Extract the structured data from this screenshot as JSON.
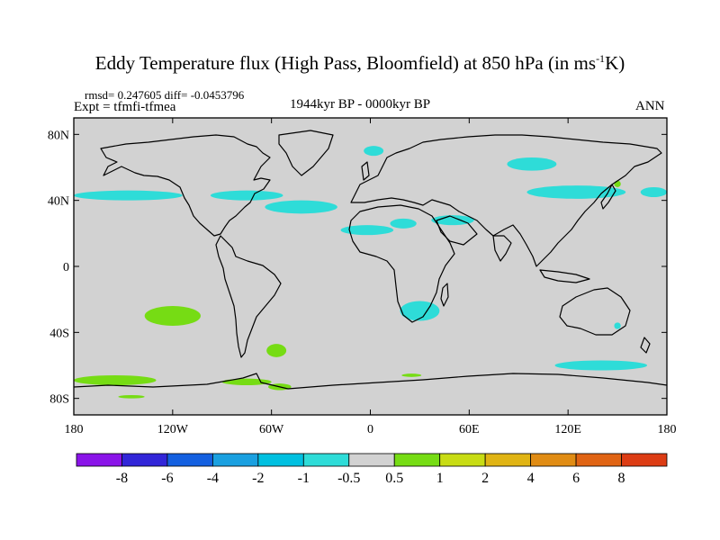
{
  "header": {
    "title_main": "Eddy Temperature flux (High Pass, Bloomfield) at 850 hPa (in ms",
    "title_sup": "-1",
    "title_end": "K)",
    "stats": "rmsd= 0.247605 diff= -0.0453796",
    "expt": "Expt = tfmfi-tfmea",
    "period": "1944kyr BP - 0000kyr BP",
    "season": "ANN"
  },
  "axes": {
    "lon_ticks": [
      {
        "lon": -180,
        "label": "180"
      },
      {
        "lon": -120,
        "label": "120W"
      },
      {
        "lon": -60,
        "label": "60W"
      },
      {
        "lon": 0,
        "label": "0"
      },
      {
        "lon": 60,
        "label": "60E"
      },
      {
        "lon": 120,
        "label": "120E"
      },
      {
        "lon": 180,
        "label": "180"
      }
    ],
    "lat_ticks": [
      {
        "lat": 80,
        "label": "80N"
      },
      {
        "lat": 40,
        "label": "40N"
      },
      {
        "lat": 0,
        "label": "0"
      },
      {
        "lat": -40,
        "label": "40S"
      },
      {
        "lat": -80,
        "label": "80S"
      }
    ],
    "lon_range": [
      -180,
      180
    ],
    "lat_range": [
      -90,
      90
    ]
  },
  "colorbar": {
    "colors": [
      "#8a14e8",
      "#3226d8",
      "#1460e0",
      "#1aa0e0",
      "#00c0e0",
      "#2edcd8",
      "#d2d2d2",
      "#76dc14",
      "#c8dc14",
      "#e0b414",
      "#e08c14",
      "#e06414",
      "#dc3c14"
    ],
    "labels": [
      "-8",
      "-6",
      "-4",
      "-2",
      "-1",
      "-0.5",
      "0.5",
      "1",
      "2",
      "4",
      "6",
      "8"
    ]
  },
  "colors": {
    "ocean_land_background": "#d2d2d2",
    "negative_anomaly": "#2edcd8",
    "positive_anomaly": "#76dc14"
  },
  "anomalies": [
    {
      "sign": "neg",
      "lon_center": -147,
      "lat_center": 43,
      "lon_half": 33,
      "lat_half": 3
    },
    {
      "sign": "neg",
      "lon_center": 172,
      "lat_center": 45,
      "lon_half": 8,
      "lat_half": 3
    },
    {
      "sign": "neg",
      "lon_center": -75,
      "lat_center": 43,
      "lon_half": 22,
      "lat_half": 3
    },
    {
      "sign": "neg",
      "lon_center": -42,
      "lat_center": 36,
      "lon_half": 22,
      "lat_half": 4
    },
    {
      "sign": "neg",
      "lon_center": 2,
      "lat_center": 70,
      "lon_half": 6,
      "lat_half": 3
    },
    {
      "sign": "neg",
      "lon_center": -2,
      "lat_center": 22,
      "lon_half": 16,
      "lat_half": 3
    },
    {
      "sign": "neg",
      "lon_center": 20,
      "lat_center": 26,
      "lon_half": 8,
      "lat_half": 3
    },
    {
      "sign": "neg",
      "lon_center": 50,
      "lat_center": 28,
      "lon_half": 13,
      "lat_half": 3
    },
    {
      "sign": "neg",
      "lon_center": 98,
      "lat_center": 62,
      "lon_half": 15,
      "lat_half": 4
    },
    {
      "sign": "neg",
      "lon_center": 125,
      "lat_center": 45,
      "lon_half": 30,
      "lat_half": 4
    },
    {
      "sign": "neg",
      "lon_center": 30,
      "lat_center": -27,
      "lon_half": 12,
      "lat_half": 6
    },
    {
      "sign": "neg",
      "lon_center": 140,
      "lat_center": -60,
      "lon_half": 28,
      "lat_half": 3
    },
    {
      "sign": "neg",
      "lon_center": 150,
      "lat_center": -36,
      "lon_half": 2,
      "lat_half": 2
    },
    {
      "sign": "pos",
      "lon_center": -120,
      "lat_center": -30,
      "lon_half": 17,
      "lat_half": 6
    },
    {
      "sign": "pos",
      "lon_center": -57,
      "lat_center": -51,
      "lon_half": 6,
      "lat_half": 4
    },
    {
      "sign": "pos",
      "lon_center": -155,
      "lat_center": -69,
      "lon_half": 25,
      "lat_half": 3
    },
    {
      "sign": "pos",
      "lon_center": -75,
      "lat_center": -70,
      "lon_half": 15,
      "lat_half": 2
    },
    {
      "sign": "pos",
      "lon_center": -55,
      "lat_center": -73,
      "lon_half": 7,
      "lat_half": 2
    },
    {
      "sign": "pos",
      "lon_center": -145,
      "lat_center": -79,
      "lon_half": 8,
      "lat_half": 1
    },
    {
      "sign": "pos",
      "lon_center": 25,
      "lat_center": -66,
      "lon_half": 6,
      "lat_half": 1
    },
    {
      "sign": "pos",
      "lon_center": 150,
      "lat_center": 50,
      "lon_half": 2,
      "lat_half": 2
    }
  ]
}
